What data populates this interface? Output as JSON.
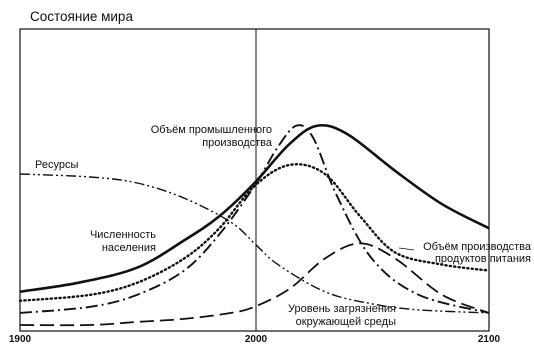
{
  "chart_data": {
    "type": "line",
    "title": "Состояние мира",
    "xlabel": "",
    "ylabel": "",
    "xlim": [
      1900,
      2100
    ],
    "ylim": [
      0,
      1
    ],
    "x_ticks": [
      "1900",
      "2000",
      "2100"
    ],
    "reference_line_x": 2000,
    "grid": false,
    "series": [
      {
        "name": "Ресурсы",
        "style": "dash-dot-dot",
        "x": [
          1900,
          1930,
          1950,
          1970,
          1990,
          2000,
          2010,
          2030,
          2050,
          2070,
          2100
        ],
        "y": [
          0.52,
          0.51,
          0.49,
          0.44,
          0.36,
          0.29,
          0.22,
          0.13,
          0.09,
          0.07,
          0.06
        ]
      },
      {
        "name": "Численность населения",
        "style": "solid",
        "x": [
          1900,
          1925,
          1950,
          1970,
          1985,
          2000,
          2015,
          2027,
          2040,
          2060,
          2080,
          2100
        ],
        "y": [
          0.13,
          0.16,
          0.21,
          0.3,
          0.38,
          0.49,
          0.62,
          0.68,
          0.65,
          0.53,
          0.42,
          0.34
        ]
      },
      {
        "name": "Объём промышленного производства",
        "style": "long-dash-dot",
        "x": [
          1900,
          1930,
          1950,
          1970,
          1985,
          2000,
          2010,
          2018,
          2025,
          2035,
          2050,
          2070,
          2100
        ],
        "y": [
          0.06,
          0.08,
          0.12,
          0.2,
          0.32,
          0.48,
          0.61,
          0.68,
          0.64,
          0.45,
          0.24,
          0.12,
          0.06
        ]
      },
      {
        "name": "Объём производства продуктов питания",
        "style": "dotted",
        "x": [
          1900,
          1930,
          1950,
          1970,
          1985,
          2000,
          2015,
          2030,
          2045,
          2060,
          2080,
          2100
        ],
        "y": [
          0.1,
          0.12,
          0.16,
          0.24,
          0.34,
          0.48,
          0.55,
          0.52,
          0.38,
          0.26,
          0.22,
          0.2
        ]
      },
      {
        "name": "Уровень загрязнения окружающей среды",
        "style": "long-dash",
        "x": [
          1900,
          1930,
          1950,
          1970,
          1990,
          2000,
          2015,
          2030,
          2045,
          2060,
          2080,
          2100
        ],
        "y": [
          0.02,
          0.02,
          0.03,
          0.04,
          0.06,
          0.08,
          0.14,
          0.24,
          0.29,
          0.24,
          0.12,
          0.06
        ]
      }
    ],
    "labels": {
      "resources": "Ресурсы",
      "population": [
        "Численность",
        "населения"
      ],
      "industry": [
        "Объём промышленного",
        "производства"
      ],
      "food": [
        "Объём производства",
        "продуктов питания"
      ],
      "pollution": [
        "Уровень загрязнения",
        "окружающей среды"
      ]
    },
    "stroke_color": "#111111"
  }
}
